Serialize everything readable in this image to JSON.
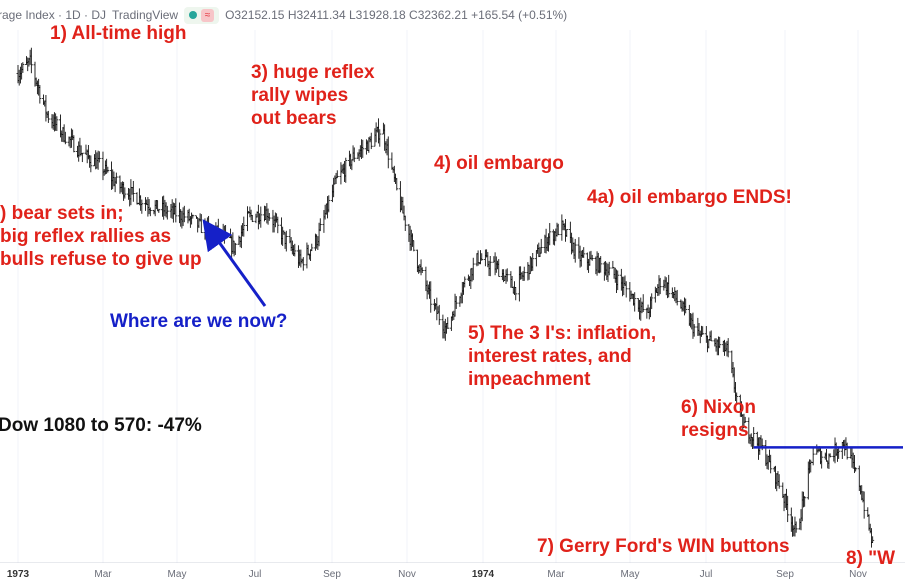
{
  "header": {
    "symbol": "rage Index · 1D · DJ",
    "source": "TradingView",
    "icon_status": "green-dot",
    "icon_alert": "≈",
    "ohlc": "O32152.15 H32411.34 L31928.18 C32362.21 +165.54 (+0.51%)"
  },
  "annotations": {
    "a1": "1) All-time high",
    "a2": ") bear sets in;\nbig reflex rallies as\nbulls refuse to give up",
    "a3": "3) huge reflex\nrally wipes\nout bears",
    "a4": "4) oil embargo",
    "a4a": "4a) oil embargo ENDS!",
    "a5": "5) The 3 I's: inflation,\ninterest rates, and\nimpeachment",
    "a6": "6) Nixon\nresigns",
    "a7": "7) Gerry Ford's WIN buttons",
    "a8": "8) \"W",
    "where": "Where are we now?",
    "dow": "Dow 1080 to 570: -47%"
  },
  "colors": {
    "annotation": "#e0221a",
    "arrow": "#1520c8",
    "bars": "#111111",
    "hline": "#1520c8"
  },
  "chart_data": {
    "type": "line",
    "title": "",
    "xlabel": "",
    "ylabel": "",
    "x_ticks": [
      "1973",
      "Mar",
      "May",
      "Jul",
      "Sep",
      "Nov",
      "1974",
      "Mar",
      "May",
      "Jul",
      "Sep",
      "Nov"
    ],
    "ylim": [
      570,
      1100
    ],
    "series": [
      {
        "points": [
          [
            "1973-01-01",
            1040
          ],
          [
            "1973-01-11",
            1051
          ],
          [
            "1973-01-25",
            1000
          ],
          [
            "1973-02-08",
            980
          ],
          [
            "1973-02-25",
            960
          ],
          [
            "1973-03-10",
            950
          ],
          [
            "1973-03-25",
            930
          ],
          [
            "1973-04-08",
            920
          ],
          [
            "1973-04-22",
            910
          ],
          [
            "1973-05-06",
            905
          ],
          [
            "1973-05-20",
            900
          ],
          [
            "1973-06-01",
            890
          ],
          [
            "1973-06-15",
            885
          ],
          [
            "1973-06-28",
            870
          ],
          [
            "1973-07-10",
            900
          ],
          [
            "1973-07-25",
            905
          ],
          [
            "1973-08-08",
            880
          ],
          [
            "1973-08-22",
            855
          ],
          [
            "1973-09-05",
            880
          ],
          [
            "1973-09-20",
            935
          ],
          [
            "1973-10-05",
            960
          ],
          [
            "1973-10-20",
            975
          ],
          [
            "1973-10-28",
            987
          ],
          [
            "1973-11-10",
            920
          ],
          [
            "1973-11-25",
            860
          ],
          [
            "1973-12-08",
            815
          ],
          [
            "1973-12-20",
            790
          ],
          [
            "1974-01-01",
            830
          ],
          [
            "1974-01-15",
            860
          ],
          [
            "1974-01-31",
            850
          ],
          [
            "1974-02-14",
            830
          ],
          [
            "1974-02-28",
            855
          ],
          [
            "1974-03-14",
            880
          ],
          [
            "1974-03-25",
            890
          ],
          [
            "1974-04-08",
            860
          ],
          [
            "1974-04-22",
            855
          ],
          [
            "1974-05-06",
            845
          ],
          [
            "1974-05-20",
            825
          ],
          [
            "1974-06-03",
            805
          ],
          [
            "1974-06-15",
            840
          ],
          [
            "1974-06-30",
            815
          ],
          [
            "1974-07-15",
            785
          ],
          [
            "1974-07-30",
            775
          ],
          [
            "1974-08-08",
            770
          ],
          [
            "1974-08-20",
            700
          ],
          [
            "1974-09-05",
            675
          ],
          [
            "1974-09-20",
            640
          ],
          [
            "1974-10-04",
            590
          ],
          [
            "1974-10-18",
            670
          ],
          [
            "1974-10-30",
            665
          ],
          [
            "1974-11-12",
            680
          ],
          [
            "1974-11-25",
            640
          ],
          [
            "1974-12-06",
            580
          ]
        ]
      }
    ],
    "hline": {
      "y": 675,
      "from": "1974-08-30",
      "to": "1974-12-31"
    },
    "grid": true,
    "legend": "none"
  }
}
